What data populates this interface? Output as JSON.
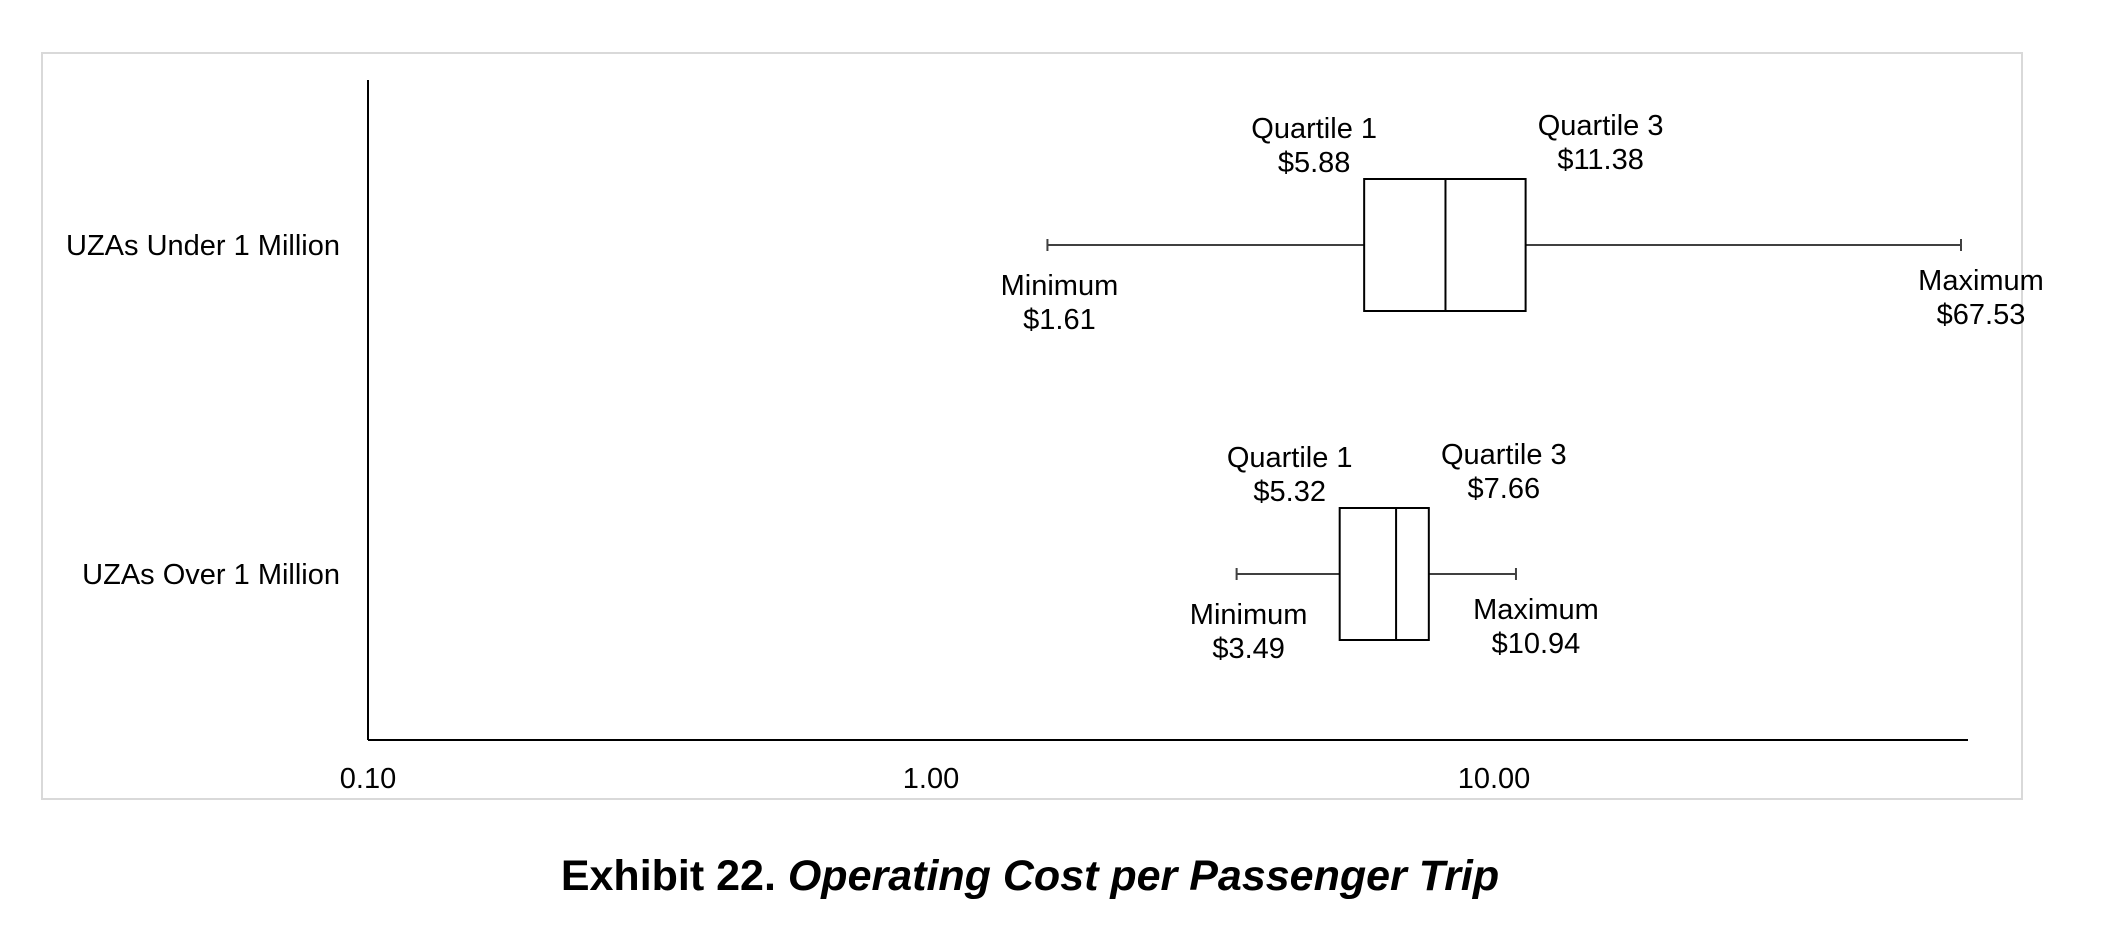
{
  "exhibit_label": "Exhibit 22.",
  "exhibit_title": "Operating Cost per Passenger Trip",
  "chart_data": {
    "type": "boxplot",
    "orientation": "horizontal",
    "x_scale": "log",
    "xlim": [
      0.1,
      80
    ],
    "x_ticks": [
      "0.10",
      "1.00",
      "10.00"
    ],
    "x_tick_values": [
      0.1,
      1,
      10
    ],
    "grid": false,
    "legend": "none",
    "series": [
      {
        "name": "UZAs Under 1 Million",
        "min": 1.61,
        "q1": 5.88,
        "median": 8.2,
        "q3": 11.38,
        "max": 67.53,
        "labels": {
          "min_title": "Minimum",
          "min_value": "$1.61",
          "q1_title": "Quartile 1",
          "q1_value": "$5.88",
          "q3_title": "Quartile 3",
          "q3_value": "$11.38",
          "max_title": "Maximum",
          "max_value": "$67.53"
        }
      },
      {
        "name": "UZAs Over 1 Million",
        "min": 3.49,
        "q1": 5.32,
        "median": 6.7,
        "q3": 7.66,
        "max": 10.94,
        "labels": {
          "min_title": "Minimum",
          "min_value": "$3.49",
          "q1_title": "Quartile 1",
          "q1_value": "$5.32",
          "q3_title": "Quartile 3",
          "q3_value": "$7.66",
          "max_title": "Maximum",
          "max_value": "$10.94"
        }
      }
    ]
  }
}
